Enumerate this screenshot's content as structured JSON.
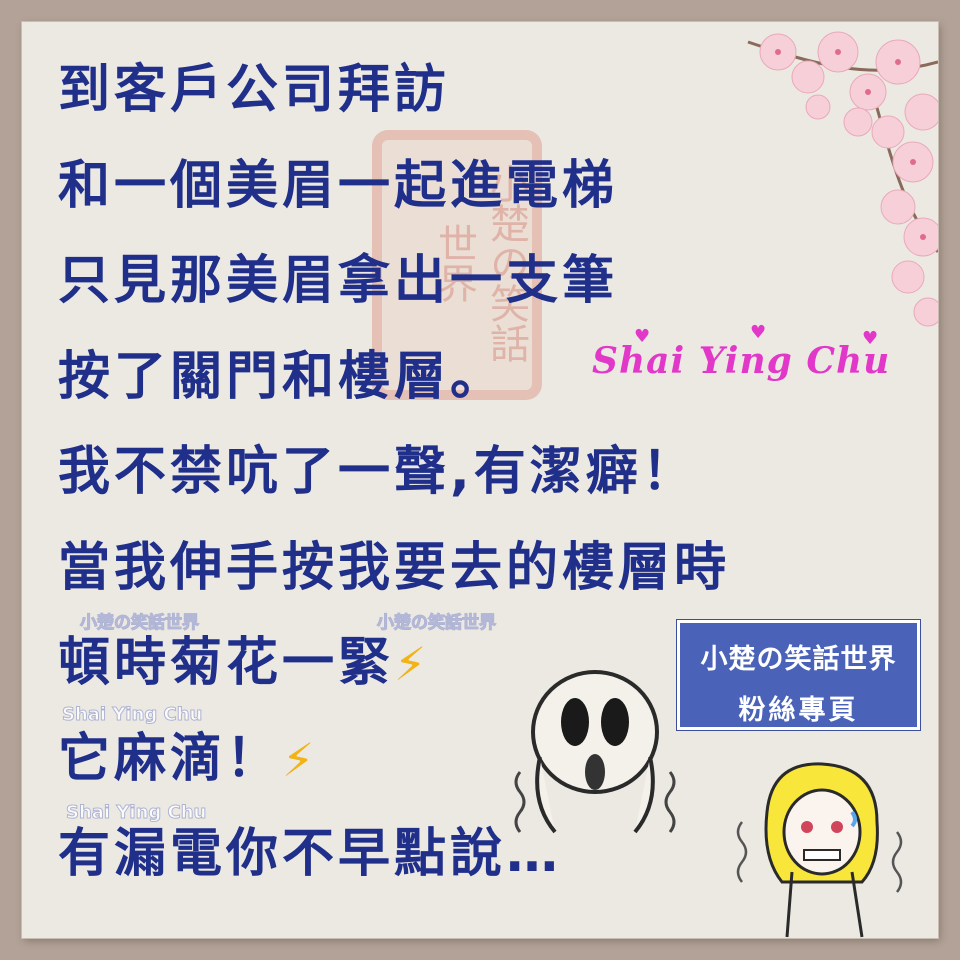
{
  "joke_lines": [
    {
      "text": "到客戶公司拜訪",
      "suffix": ""
    },
    {
      "text": "和一個美眉一起進電梯",
      "suffix": ""
    },
    {
      "text": "只見那美眉拿出一支筆",
      "suffix": ""
    },
    {
      "text": "按了關門和樓層。",
      "suffix": ""
    },
    {
      "text": "我不禁吭了一聲,有潔癖！",
      "suffix": ""
    },
    {
      "text": "當我伸手按我要去的樓層時",
      "suffix": ""
    },
    {
      "text": "頓時菊花一緊",
      "suffix": "⚡"
    },
    {
      "text": "它麻滴！",
      "suffix": "⚡"
    },
    {
      "text": "有漏電你不早點說…",
      "suffix": ""
    }
  ],
  "signature": "Shai Ying Chu",
  "seal_text": "小楚の笑話世界",
  "watermarks": {
    "cn": "小楚の笑話世界",
    "en": "Shai Ying Chu"
  },
  "badge": {
    "line1": "小楚の笑話世界",
    "line2": "粉絲專頁"
  },
  "colors": {
    "text": "#1f2f8a",
    "signature": "#e238c9",
    "badge": "#4a63b8",
    "bolt": "#f2b316",
    "background": "#ece9e3"
  },
  "icons": [
    "lightning-bolt-icon",
    "heart-icon",
    "cherry-blossom-decoration",
    "screaming-face-sticker",
    "grimacing-girl-sticker"
  ]
}
